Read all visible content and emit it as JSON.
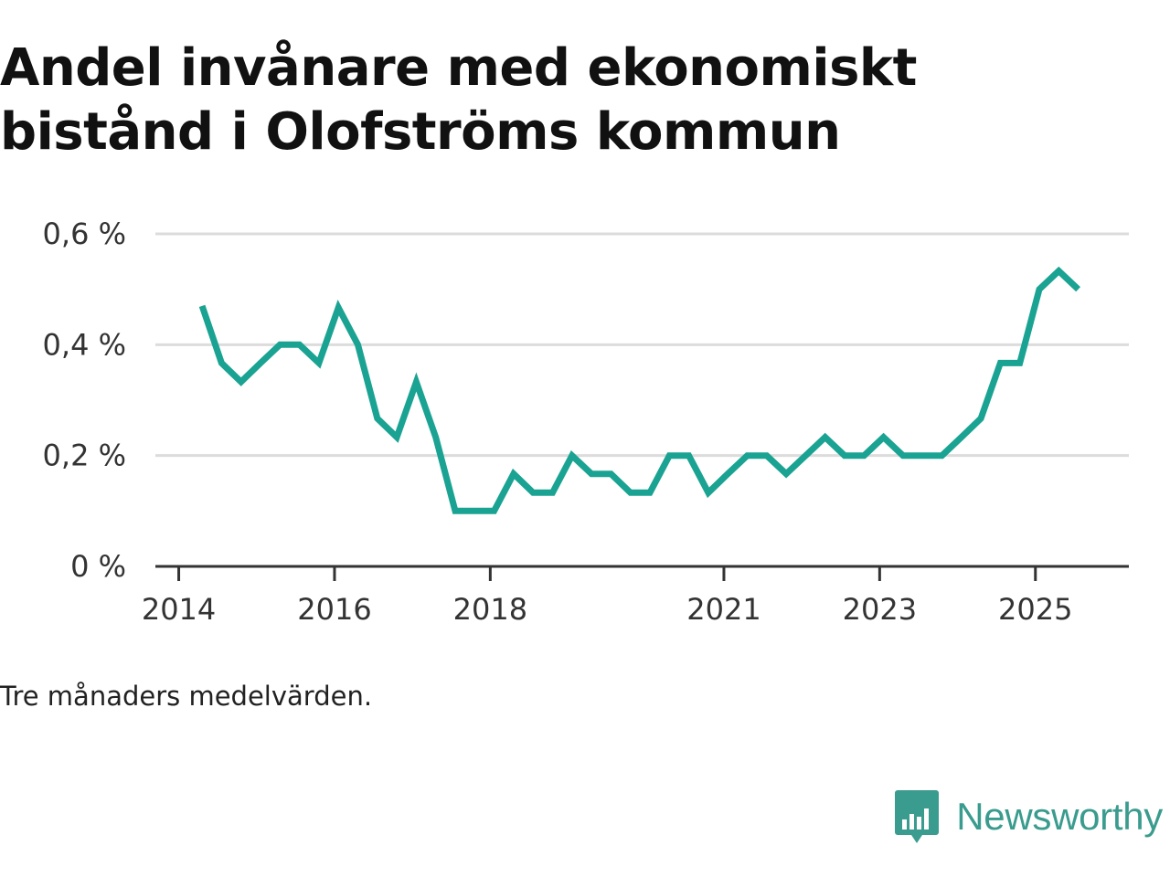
{
  "title_lines": [
    "Andel invånare med ekonomiskt",
    "bistånd i Olofströms kommun"
  ],
  "note": "Tre månaders medelvärden.",
  "brand": {
    "name": "Newsworthy",
    "icon": "bar-chart-speech-bubble-icon",
    "color": "#3a9c8e"
  },
  "chart_data": {
    "type": "line",
    "title": "Andel invånare med ekonomiskt bistånd i Olofströms kommun",
    "xlabel": "",
    "ylabel": "",
    "unit": "%",
    "ylim": [
      0,
      0.6
    ],
    "y_ticks": [
      0,
      0.2,
      0.4,
      0.6
    ],
    "y_tick_labels": [
      "0 %",
      "0,2 %",
      "0,4 %",
      "0,6 %"
    ],
    "x_ticks": [
      2014,
      2016,
      2018,
      2021,
      2023,
      2025
    ],
    "x_tick_labels": [
      "2014",
      "2016",
      "2018",
      "2021",
      "2023",
      "2025"
    ],
    "xlim": [
      2013.7,
      2026.2
    ],
    "grid": true,
    "line_color": "#1aa392",
    "series": [
      {
        "name": "Andel invånare med ekonomiskt bistånd",
        "x": [
          2014.3,
          2014.55,
          2014.8,
          2015.05,
          2015.3,
          2015.55,
          2015.8,
          2016.05,
          2016.3,
          2016.55,
          2016.8,
          2017.05,
          2017.3,
          2017.55,
          2017.8,
          2018.05,
          2018.3,
          2018.55,
          2018.8,
          2019.05,
          2019.3,
          2019.55,
          2019.8,
          2020.05,
          2020.3,
          2020.55,
          2020.8,
          2021.05,
          2021.3,
          2021.55,
          2021.8,
          2022.05,
          2022.3,
          2022.55,
          2022.8,
          2023.05,
          2023.3,
          2023.55,
          2023.8,
          2024.05,
          2024.3,
          2024.55,
          2024.8,
          2025.05,
          2025.3,
          2025.55
        ],
        "values": [
          0.47,
          0.367,
          0.333,
          0.367,
          0.4,
          0.4,
          0.367,
          0.467,
          0.4,
          0.267,
          0.233,
          0.333,
          0.233,
          0.1,
          0.1,
          0.1,
          0.167,
          0.133,
          0.133,
          0.2,
          0.167,
          0.167,
          0.133,
          0.133,
          0.2,
          0.2,
          0.133,
          0.167,
          0.2,
          0.2,
          0.167,
          0.2,
          0.233,
          0.2,
          0.2,
          0.233,
          0.2,
          0.2,
          0.2,
          0.233,
          0.267,
          0.367,
          0.367,
          0.5,
          0.533,
          0.5
        ]
      }
    ]
  }
}
